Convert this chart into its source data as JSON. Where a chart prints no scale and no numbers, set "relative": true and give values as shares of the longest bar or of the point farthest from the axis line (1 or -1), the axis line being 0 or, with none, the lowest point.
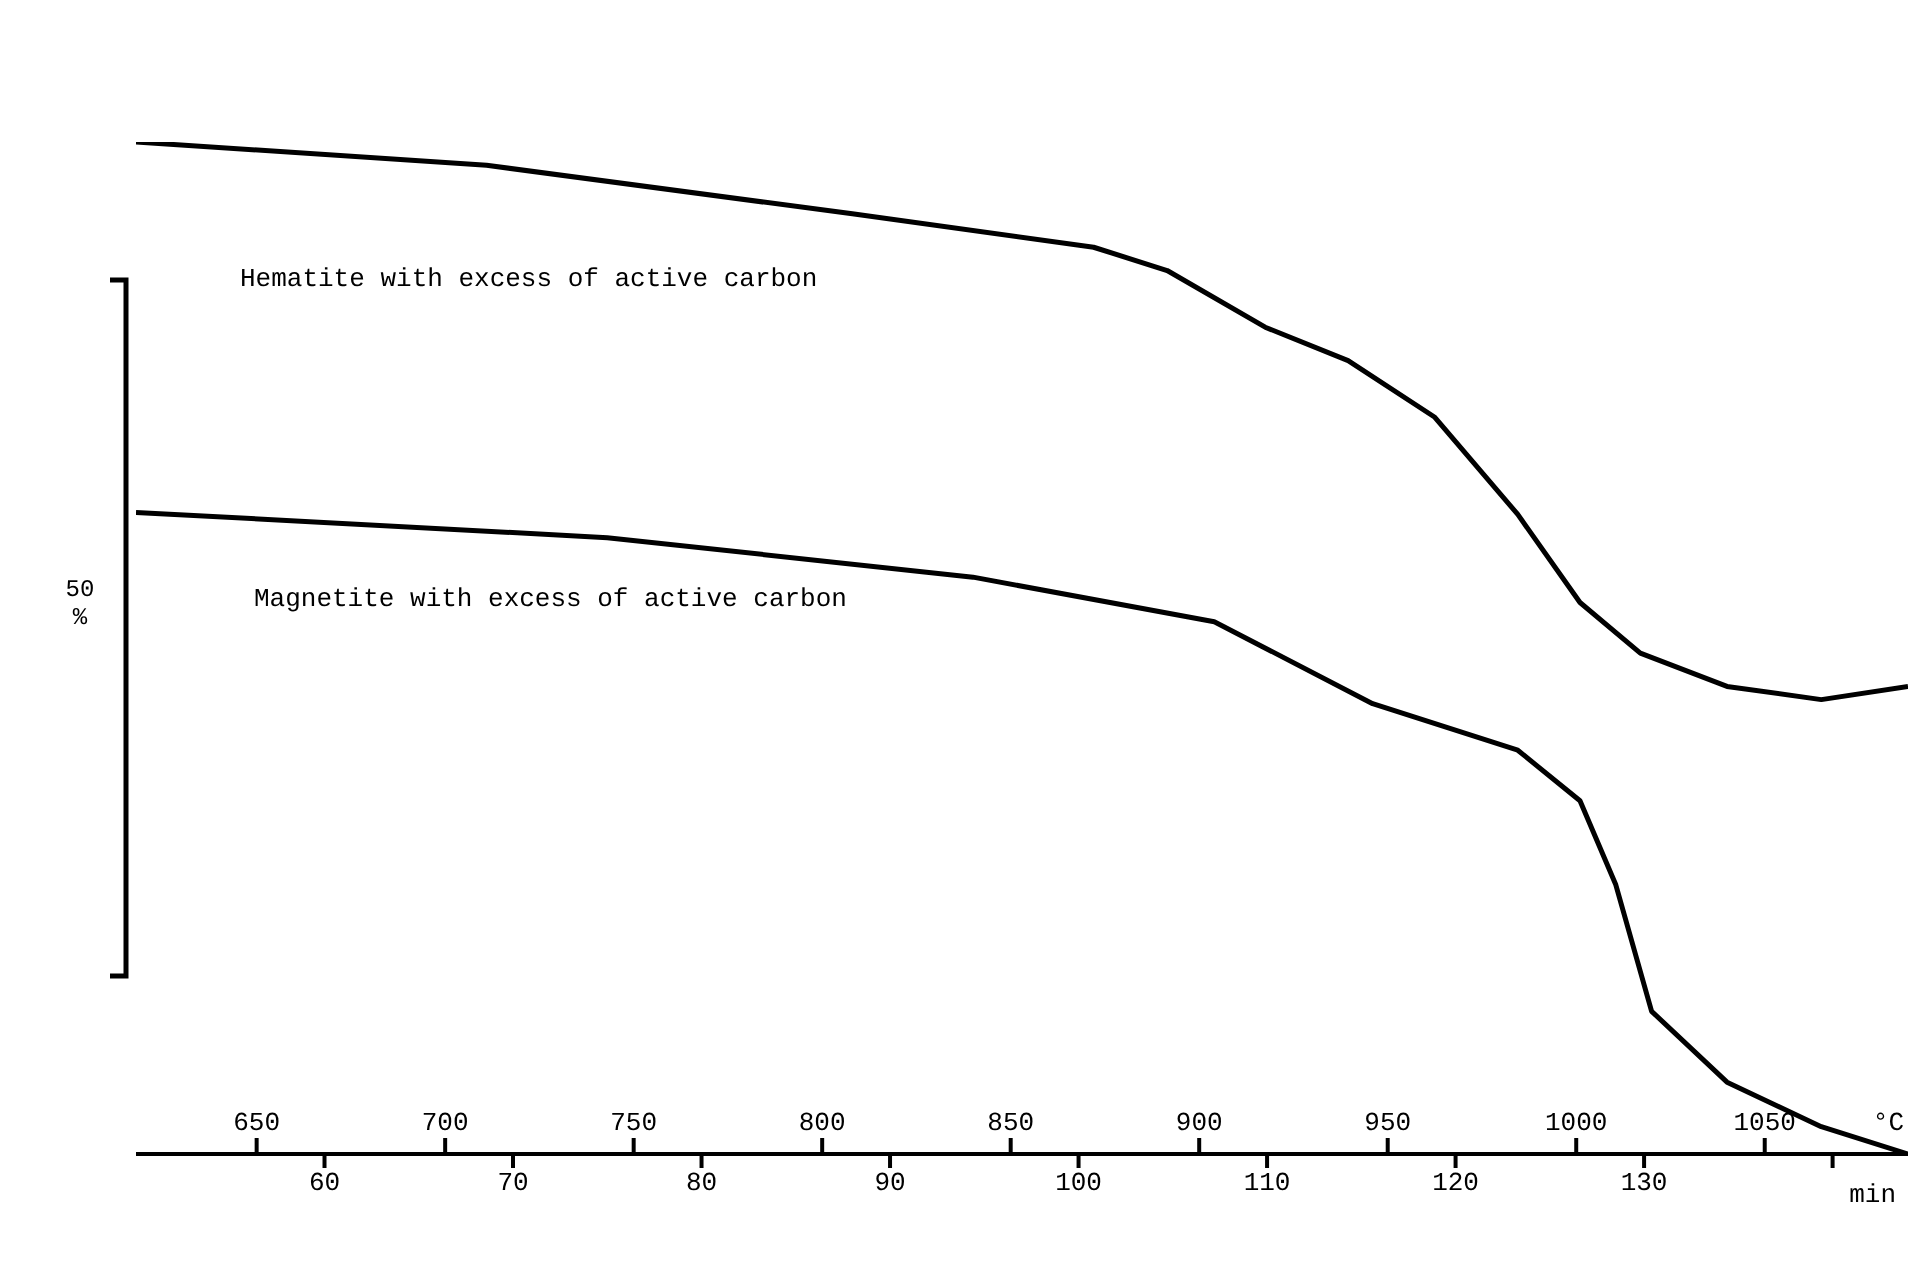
{
  "chart_data": {
    "type": "line",
    "relative": true,
    "xlabel": "min",
    "x2label": "°C",
    "marker": "none",
    "line_style": "solid",
    "xlim": [
      50,
      144
    ],
    "xticks": [
      60,
      70,
      80,
      90,
      100,
      110,
      120,
      130,
      {
        "value": 140,
        "label": null
      }
    ],
    "x2lim": [
      618,
      1088
    ],
    "x2ticks": [
      650,
      700,
      750,
      800,
      850,
      900,
      950,
      1000,
      1050
    ],
    "annotations": [
      "50 %"
    ],
    "series": [
      {
        "name": "Hematite with excess of active carbon",
        "color": "#000000",
        "x": [
          50,
          68.6,
          88.0,
          100.8,
          104.7,
          109.9,
          114.3,
          118.9,
          123.3,
          126.6,
          129.8,
          134.4,
          139.4,
          144
        ],
        "values": [
          1.0,
          0.977,
          0.929,
          0.896,
          0.873,
          0.817,
          0.784,
          0.728,
          0.632,
          0.545,
          0.495,
          0.462,
          0.449,
          0.462
        ]
      },
      {
        "name": "Magnetite with excess of active carbon",
        "color": "#000000",
        "x": [
          50,
          75.0,
          94.4,
          107.2,
          115.6,
          123.3,
          126.6,
          128.5,
          130.4,
          134.4,
          139.4,
          144
        ],
        "values": [
          0.634,
          0.609,
          0.57,
          0.526,
          0.445,
          0.399,
          0.349,
          0.266,
          0.141,
          0.071,
          0.027,
          0
        ]
      }
    ]
  }
}
